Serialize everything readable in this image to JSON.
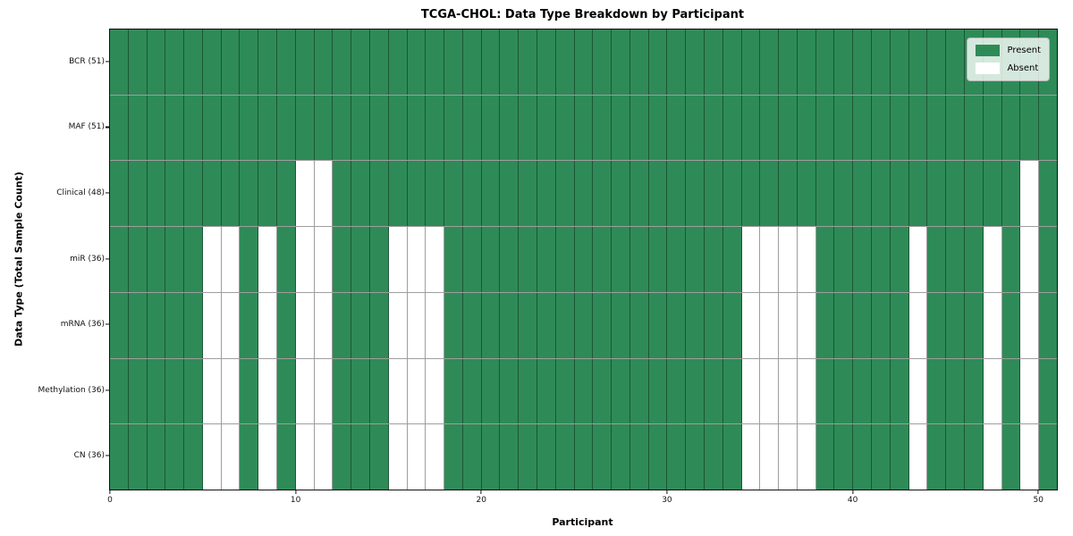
{
  "chart_data": {
    "type": "heatmap",
    "title": "TCGA-CHOL: Data Type Breakdown by Participant",
    "xlabel": "Participant",
    "ylabel": "Data Type (Total Sample Count)",
    "n_participants": 51,
    "x_ticks": [
      0,
      10,
      20,
      30,
      40,
      50
    ],
    "colors": {
      "present": "#2E8B57",
      "absent": "#FFFFFF",
      "grid": "rgba(0,0,0,0.38)"
    },
    "rows": [
      {
        "label": "BCR (51)",
        "present_count": 51,
        "absent_participants": []
      },
      {
        "label": "MAF (51)",
        "present_count": 51,
        "absent_participants": []
      },
      {
        "label": "Clinical (48)",
        "present_count": 48,
        "absent_participants": [
          10,
          11,
          49
        ]
      },
      {
        "label": "miR (36)",
        "present_count": 36,
        "absent_participants": [
          5,
          6,
          8,
          10,
          11,
          15,
          16,
          17,
          34,
          35,
          36,
          37,
          43,
          47,
          49
        ]
      },
      {
        "label": "mRNA (36)",
        "present_count": 36,
        "absent_participants": [
          5,
          6,
          8,
          10,
          11,
          15,
          16,
          17,
          34,
          35,
          36,
          37,
          43,
          47,
          49
        ]
      },
      {
        "label": "Methylation (36)",
        "present_count": 36,
        "absent_participants": [
          5,
          6,
          8,
          10,
          11,
          15,
          16,
          17,
          34,
          35,
          36,
          37,
          43,
          47,
          49
        ]
      },
      {
        "label": "CN (36)",
        "present_count": 36,
        "absent_participants": [
          5,
          6,
          8,
          10,
          11,
          15,
          16,
          17,
          34,
          35,
          36,
          37,
          43,
          47,
          49
        ]
      }
    ],
    "legend": [
      {
        "label": "Present",
        "color": "#2E8B57"
      },
      {
        "label": "Absent",
        "color": "#FFFFFF"
      }
    ]
  }
}
